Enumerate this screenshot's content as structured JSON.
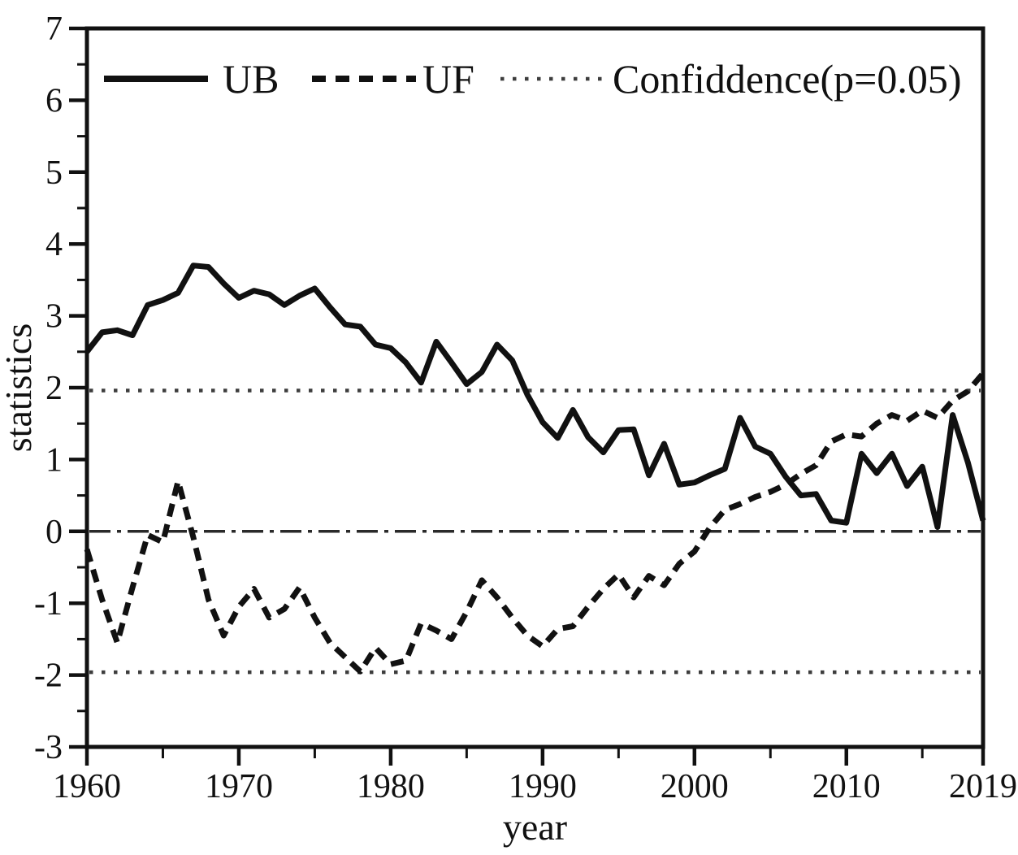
{
  "figure": {
    "background": "#ffffff",
    "line_color": "#111111",
    "dotted_color": "#3d3d3d",
    "zero_line_color": "#2a2a2a"
  },
  "chart_data": {
    "type": "line",
    "title": "",
    "xlabel": "year",
    "ylabel": "statistics",
    "xlim": [
      1960,
      2019
    ],
    "ylim": [
      -3,
      7
    ],
    "grid": false,
    "legend_position": "top-inside",
    "x_axis": {
      "label": "year",
      "major_ticks": [
        1960,
        1970,
        1980,
        1990,
        2000,
        2010,
        2019
      ],
      "minor_ticks": [
        1965,
        1975,
        1985,
        1995,
        2005,
        2015
      ]
    },
    "y_axis": {
      "label": "statistics",
      "major_ticks": [
        -3,
        -2,
        -1,
        0,
        1,
        2,
        3,
        4,
        5,
        6,
        7
      ],
      "minor_ticks": [
        -2.5,
        -1.5,
        -0.5,
        0.5,
        1.5,
        2.5,
        3.5,
        4.5,
        5.5,
        6.5
      ]
    },
    "reference_lines": [
      {
        "name": "confidence-upper",
        "value": 1.96,
        "style": "dotted"
      },
      {
        "name": "zero",
        "value": 0,
        "style": "dash-dot"
      },
      {
        "name": "confidence-lower",
        "value": -1.96,
        "style": "dotted"
      }
    ],
    "legend": [
      {
        "label": "UB",
        "style": "solid"
      },
      {
        "label": "UF",
        "style": "dashed"
      },
      {
        "label": "Confiddence(p=0.05)",
        "style": "dotted"
      }
    ],
    "x": [
      1960,
      1961,
      1962,
      1963,
      1964,
      1965,
      1966,
      1967,
      1968,
      1969,
      1970,
      1971,
      1972,
      1973,
      1974,
      1975,
      1976,
      1977,
      1978,
      1979,
      1980,
      1981,
      1982,
      1983,
      1984,
      1985,
      1986,
      1987,
      1988,
      1989,
      1990,
      1991,
      1992,
      1993,
      1994,
      1995,
      1996,
      1997,
      1998,
      1999,
      2000,
      2001,
      2002,
      2003,
      2004,
      2005,
      2006,
      2007,
      2008,
      2009,
      2010,
      2011,
      2012,
      2013,
      2014,
      2015,
      2016,
      2017,
      2018,
      2019
    ],
    "series": [
      {
        "name": "UB",
        "style": "solid",
        "values": [
          2.5,
          2.77,
          2.8,
          2.73,
          3.15,
          3.22,
          3.32,
          3.7,
          3.68,
          3.45,
          3.25,
          3.35,
          3.3,
          3.15,
          3.28,
          3.38,
          3.12,
          2.88,
          2.85,
          2.6,
          2.55,
          2.35,
          2.07,
          2.64,
          2.35,
          2.05,
          2.22,
          2.6,
          2.38,
          1.9,
          1.52,
          1.3,
          1.69,
          1.31,
          1.1,
          1.41,
          1.42,
          0.78,
          1.22,
          0.65,
          0.68,
          0.78,
          0.87,
          1.58,
          1.18,
          1.08,
          0.76,
          0.5,
          0.52,
          0.15,
          0.12,
          1.08,
          0.81,
          1.08,
          0.63,
          0.9,
          0.06,
          1.62,
          0.96,
          0.15
        ]
      },
      {
        "name": "UF",
        "style": "dashed",
        "values": [
          -0.25,
          -0.95,
          -1.55,
          -0.78,
          -0.05,
          -0.15,
          0.7,
          -0.08,
          -0.95,
          -1.45,
          -1.05,
          -0.8,
          -1.2,
          -1.08,
          -0.78,
          -1.2,
          -1.55,
          -1.75,
          -1.95,
          -1.62,
          -1.85,
          -1.8,
          -1.28,
          -1.38,
          -1.5,
          -1.12,
          -0.68,
          -0.92,
          -1.2,
          -1.45,
          -1.6,
          -1.36,
          -1.32,
          -1.05,
          -0.8,
          -0.6,
          -0.92,
          -0.62,
          -0.75,
          -0.45,
          -0.28,
          0.05,
          0.3,
          0.38,
          0.48,
          0.55,
          0.65,
          0.8,
          0.92,
          1.25,
          1.35,
          1.32,
          1.5,
          1.62,
          1.54,
          1.68,
          1.58,
          1.82,
          1.95,
          2.2
        ]
      }
    ]
  }
}
